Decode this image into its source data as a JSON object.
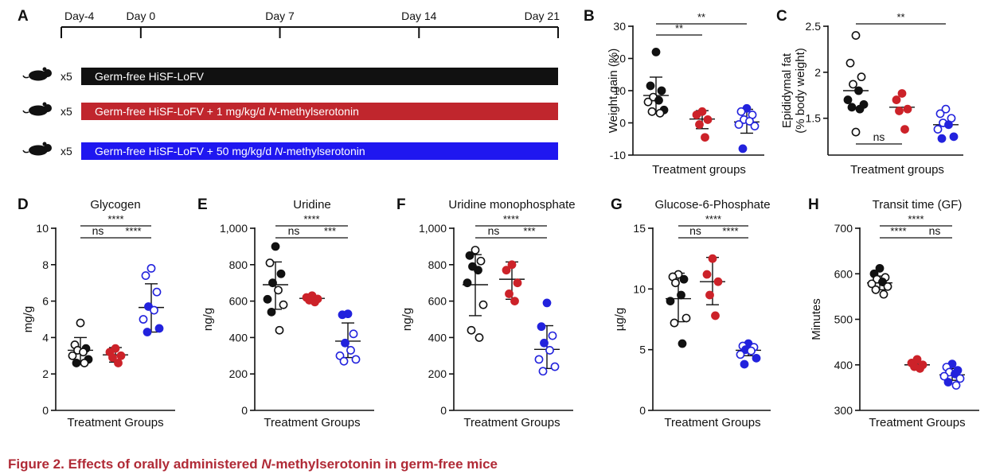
{
  "caption": {
    "prefix": "Figure 2.  Effects of orally administered ",
    "italic": "N",
    "suffix": "-methylserotonin in germ-free mice"
  },
  "colors": {
    "black": "#111111",
    "red": "#cc2229",
    "blue": "#2222dd"
  },
  "panel_a": {
    "letter": "A",
    "timeline": [
      "Day-4",
      "Day 0",
      "Day 7",
      "Day 14",
      "Day 21"
    ],
    "groups": [
      {
        "count": "x5",
        "label": "Germ-free   HiSF-LoFV",
        "italic": "",
        "after": "",
        "color": "#111111",
        "icon": "mouse-icon"
      },
      {
        "count": "x5",
        "label": "Germ-free   HiSF-LoFV + 1 mg/kg/d ",
        "italic": "N",
        "after": "-methylserotonin",
        "color": "#c0262d",
        "icon": "mouse-icon"
      },
      {
        "count": "x5",
        "label": "Germ-free   HiSF-LoFV + 50 mg/kg/d ",
        "italic": "N",
        "after": "-methylserotonin",
        "color": "#1f17f0",
        "icon": "mouse-icon"
      }
    ]
  },
  "chart_data": [
    {
      "panel": "B",
      "type": "scatter",
      "title": "",
      "xlabel": "Treatment groups",
      "ylabel": "Weight gain (%)",
      "ylim": [
        -10,
        30
      ],
      "yticks": [
        -10,
        0,
        10,
        20,
        30
      ],
      "ytick_labels": [
        "-10",
        "0",
        "10",
        "20",
        "30"
      ],
      "groups": [
        {
          "color": "black",
          "mean": 8.5,
          "sd_low": 3.5,
          "sd_high": 14.2,
          "points": [
            [
              22,
              "f"
            ],
            [
              11.5,
              "f"
            ],
            [
              10,
              "f"
            ],
            [
              8,
              "o"
            ],
            [
              7,
              "f"
            ],
            [
              6.5,
              "o"
            ],
            [
              4,
              "f"
            ],
            [
              3.5,
              "o"
            ],
            [
              3,
              "o"
            ]
          ]
        },
        {
          "color": "red",
          "mean": 1.2,
          "sd_low": -1.8,
          "sd_high": 3.8,
          "points": [
            [
              3.5,
              "f"
            ],
            [
              2.5,
              "f"
            ],
            [
              1,
              "f"
            ],
            [
              -0.5,
              "f"
            ],
            [
              -4.5,
              "f"
            ]
          ]
        },
        {
          "color": "blue",
          "mean": 0.3,
          "sd_low": -3.2,
          "sd_high": 4.2,
          "points": [
            [
              4.5,
              "f"
            ],
            [
              3.5,
              "o"
            ],
            [
              2.5,
              "o"
            ],
            [
              1,
              "o"
            ],
            [
              0.5,
              "o"
            ],
            [
              -0.5,
              "o"
            ],
            [
              -1,
              "o"
            ],
            [
              -8,
              "f"
            ]
          ]
        }
      ],
      "sig": [
        {
          "from": 0,
          "to": 1,
          "label": "**"
        },
        {
          "from": 0,
          "to": 2,
          "label": "**"
        }
      ]
    },
    {
      "panel": "C",
      "type": "scatter",
      "title": "",
      "xlabel": "Treatment groups",
      "ylabel": "Epididymal fat (% body weight)",
      "ylabel_lines": [
        "Epididymal fat",
        "(% body weight)"
      ],
      "ylim": [
        1.1,
        2.5
      ],
      "yticks": [
        1.5,
        2.0,
        2.5
      ],
      "ytick_labels": [
        "1.5",
        "2",
        "2.5"
      ],
      "groups": [
        {
          "color": "black",
          "mean": 1.8,
          "points": [
            [
              2.4,
              "o"
            ],
            [
              2.1,
              "o"
            ],
            [
              1.95,
              "o"
            ],
            [
              1.87,
              "o"
            ],
            [
              1.8,
              "f"
            ],
            [
              1.7,
              "f"
            ],
            [
              1.65,
              "f"
            ],
            [
              1.62,
              "f"
            ],
            [
              1.6,
              "f"
            ],
            [
              1.35,
              "o"
            ]
          ]
        },
        {
          "color": "red",
          "mean": 1.62,
          "points": [
            [
              1.77,
              "f"
            ],
            [
              1.7,
              "f"
            ],
            [
              1.6,
              "f"
            ],
            [
              1.58,
              "f"
            ],
            [
              1.38,
              "f"
            ]
          ]
        },
        {
          "color": "blue",
          "mean": 1.43,
          "points": [
            [
              1.6,
              "o"
            ],
            [
              1.55,
              "o"
            ],
            [
              1.5,
              "o"
            ],
            [
              1.45,
              "o"
            ],
            [
              1.43,
              "f"
            ],
            [
              1.38,
              "o"
            ],
            [
              1.3,
              "f"
            ],
            [
              1.28,
              "f"
            ]
          ]
        }
      ],
      "sig": [
        {
          "from": 0,
          "to": 2,
          "label": "**"
        },
        {
          "from": 0,
          "to": 1,
          "label": "ns",
          "below": true
        }
      ]
    },
    {
      "panel": "D",
      "type": "scatter",
      "title": "Glycogen",
      "xlabel": "Treatment Groups",
      "ylabel": "mg/g",
      "ylim": [
        0,
        10
      ],
      "yticks": [
        0,
        2,
        4,
        6,
        8,
        10
      ],
      "ytick_labels": [
        "0",
        "2",
        "4",
        "6",
        "8",
        "10"
      ],
      "groups": [
        {
          "color": "black",
          "mean": 3.3,
          "sd_low": 2.6,
          "sd_high": 4.0,
          "points": [
            [
              4.8,
              "o"
            ],
            [
              3.6,
              "o"
            ],
            [
              3.4,
              "f"
            ],
            [
              3.3,
              "o"
            ],
            [
              3.2,
              "o"
            ],
            [
              3.0,
              "o"
            ],
            [
              2.8,
              "f"
            ],
            [
              2.6,
              "f"
            ],
            [
              2.6,
              "o"
            ]
          ]
        },
        {
          "color": "red",
          "mean": 3.05,
          "sd_low": 2.65,
          "sd_high": 3.45,
          "points": [
            [
              3.4,
              "f"
            ],
            [
              3.2,
              "f"
            ],
            [
              3.0,
              "f"
            ],
            [
              2.9,
              "f"
            ],
            [
              2.6,
              "f"
            ]
          ]
        },
        {
          "color": "blue",
          "mean": 5.65,
          "sd_low": 4.3,
          "sd_high": 6.95,
          "points": [
            [
              7.8,
              "o"
            ],
            [
              7.4,
              "o"
            ],
            [
              6.5,
              "o"
            ],
            [
              5.7,
              "f"
            ],
            [
              5.5,
              "o"
            ],
            [
              5.0,
              "o"
            ],
            [
              4.5,
              "f"
            ],
            [
              4.3,
              "f"
            ]
          ]
        }
      ],
      "sig": [
        {
          "from": 0,
          "to": 2,
          "label": "****"
        },
        {
          "from": 0,
          "to": 1,
          "label": "ns"
        },
        {
          "from": 1,
          "to": 2,
          "label": "****"
        }
      ]
    },
    {
      "panel": "E",
      "type": "scatter",
      "title": "Uridine",
      "xlabel": "Treatment Groups",
      "ylabel": "ng/g",
      "ylim": [
        0,
        1000
      ],
      "yticks": [
        0,
        200,
        400,
        600,
        800,
        1000
      ],
      "ytick_labels": [
        "0",
        "200",
        "400",
        "600",
        "800",
        "1,000"
      ],
      "groups": [
        {
          "color": "black",
          "mean": 690,
          "sd_low": 555,
          "sd_high": 815,
          "points": [
            [
              900,
              "f"
            ],
            [
              810,
              "o"
            ],
            [
              750,
              "f"
            ],
            [
              700,
              "f"
            ],
            [
              660,
              "o"
            ],
            [
              610,
              "f"
            ],
            [
              580,
              "o"
            ],
            [
              540,
              "f"
            ],
            [
              440,
              "o"
            ]
          ]
        },
        {
          "color": "red",
          "mean": 615,
          "sd_low": 600,
          "sd_high": 630,
          "points": [
            [
              630,
              "f"
            ],
            [
              620,
              "f"
            ],
            [
              612,
              "f"
            ],
            [
              605,
              "f"
            ],
            [
              595,
              "f"
            ]
          ]
        },
        {
          "color": "blue",
          "mean": 380,
          "sd_low": 290,
          "sd_high": 480,
          "points": [
            [
              530,
              "f"
            ],
            [
              525,
              "f"
            ],
            [
              420,
              "o"
            ],
            [
              370,
              "f"
            ],
            [
              330,
              "o"
            ],
            [
              300,
              "o"
            ],
            [
              280,
              "o"
            ],
            [
              270,
              "o"
            ]
          ]
        }
      ],
      "sig": [
        {
          "from": 0,
          "to": 2,
          "label": "****"
        },
        {
          "from": 0,
          "to": 1,
          "label": "ns"
        },
        {
          "from": 1,
          "to": 2,
          "label": "***"
        }
      ]
    },
    {
      "panel": "F",
      "type": "scatter",
      "title": "Uridine monophosphate",
      "xlabel": "Treatment Groups",
      "ylabel": "ng/g",
      "ylim": [
        0,
        1000
      ],
      "yticks": [
        0,
        200,
        400,
        600,
        800,
        1000
      ],
      "ytick_labels": [
        "0",
        "200",
        "400",
        "600",
        "800",
        "1,000"
      ],
      "groups": [
        {
          "color": "black",
          "mean": 690,
          "sd_low": 520,
          "sd_high": 855,
          "points": [
            [
              880,
              "o"
            ],
            [
              850,
              "f"
            ],
            [
              820,
              "o"
            ],
            [
              790,
              "f"
            ],
            [
              770,
              "f"
            ],
            [
              700,
              "f"
            ],
            [
              580,
              "o"
            ],
            [
              440,
              "o"
            ],
            [
              400,
              "o"
            ]
          ]
        },
        {
          "color": "red",
          "mean": 720,
          "sd_low": 610,
          "sd_high": 815,
          "points": [
            [
              800,
              "f"
            ],
            [
              770,
              "f"
            ],
            [
              700,
              "f"
            ],
            [
              640,
              "f"
            ],
            [
              600,
              "f"
            ]
          ]
        },
        {
          "color": "blue",
          "mean": 335,
          "sd_low": 230,
          "sd_high": 465,
          "points": [
            [
              590,
              "f"
            ],
            [
              460,
              "f"
            ],
            [
              410,
              "o"
            ],
            [
              370,
              "f"
            ],
            [
              330,
              "o"
            ],
            [
              280,
              "o"
            ],
            [
              240,
              "o"
            ],
            [
              215,
              "o"
            ]
          ]
        }
      ],
      "sig": [
        {
          "from": 0,
          "to": 2,
          "label": "****"
        },
        {
          "from": 0,
          "to": 1,
          "label": "ns"
        },
        {
          "from": 1,
          "to": 2,
          "label": "***"
        }
      ]
    },
    {
      "panel": "G",
      "type": "scatter",
      "title": "Glucose-6-Phosphate",
      "xlabel": "Treatment Groups",
      "ylabel": "µg/g",
      "ylim": [
        0,
        15
      ],
      "yticks": [
        0,
        5,
        10,
        15
      ],
      "ytick_labels": [
        "0",
        "5",
        "10",
        "15"
      ],
      "groups": [
        {
          "color": "black",
          "mean": 9.2,
          "sd_low": 7.3,
          "sd_high": 11.3,
          "points": [
            [
              11.2,
              "o"
            ],
            [
              11.0,
              "o"
            ],
            [
              10.8,
              "f"
            ],
            [
              10.5,
              "o"
            ],
            [
              9.5,
              "f"
            ],
            [
              9.0,
              "f"
            ],
            [
              7.6,
              "o"
            ],
            [
              7.2,
              "o"
            ],
            [
              5.5,
              "f"
            ]
          ]
        },
        {
          "color": "red",
          "mean": 10.6,
          "sd_low": 8.7,
          "sd_high": 12.6,
          "points": [
            [
              12.5,
              "f"
            ],
            [
              11.2,
              "f"
            ],
            [
              10.6,
              "f"
            ],
            [
              9.5,
              "f"
            ],
            [
              7.8,
              "f"
            ]
          ]
        },
        {
          "color": "blue",
          "mean": 4.95,
          "sd_low": 4.5,
          "sd_high": 5.4,
          "points": [
            [
              5.5,
              "f"
            ],
            [
              5.3,
              "o"
            ],
            [
              5.2,
              "o"
            ],
            [
              5.0,
              "f"
            ],
            [
              4.9,
              "o"
            ],
            [
              4.6,
              "o"
            ],
            [
              4.3,
              "f"
            ],
            [
              3.8,
              "f"
            ]
          ]
        }
      ],
      "sig": [
        {
          "from": 0,
          "to": 2,
          "label": "****"
        },
        {
          "from": 0,
          "to": 1,
          "label": "ns"
        },
        {
          "from": 1,
          "to": 2,
          "label": "****"
        }
      ]
    },
    {
      "panel": "H",
      "type": "scatter",
      "title": "Transit time (GF)",
      "xlabel": "Treatment Groups",
      "ylabel": "Minutes",
      "ylim": [
        300,
        700
      ],
      "yticks": [
        300,
        400,
        500,
        600,
        700
      ],
      "ytick_labels": [
        "300",
        "400",
        "500",
        "600",
        "700"
      ],
      "groups": [
        {
          "color": "black",
          "mean": 580,
          "sd_low": 565,
          "sd_high": 595,
          "points": [
            [
              612,
              "f"
            ],
            [
              600,
              "f"
            ],
            [
              592,
              "o"
            ],
            [
              588,
              "o"
            ],
            [
              582,
              "f"
            ],
            [
              578,
              "o"
            ],
            [
              572,
              "o"
            ],
            [
              565,
              "o"
            ],
            [
              555,
              "o"
            ]
          ]
        },
        {
          "color": "red",
          "mean": 400,
          "sd_low": 398,
          "sd_high": 403,
          "points": [
            [
              412,
              "f"
            ],
            [
              404,
              "f"
            ],
            [
              400,
              "f"
            ],
            [
              396,
              "f"
            ],
            [
              392,
              "f"
            ]
          ]
        },
        {
          "color": "blue",
          "mean": 378,
          "sd_low": 366,
          "sd_high": 392,
          "points": [
            [
              402,
              "f"
            ],
            [
              395,
              "o"
            ],
            [
              388,
              "f"
            ],
            [
              384,
              "o"
            ],
            [
              380,
              "f"
            ],
            [
              375,
              "o"
            ],
            [
              370,
              "o"
            ],
            [
              362,
              "f"
            ],
            [
              355,
              "o"
            ]
          ]
        }
      ],
      "sig": [
        {
          "from": 0,
          "to": 2,
          "label": "****"
        },
        {
          "from": 0,
          "to": 1,
          "label": "****"
        },
        {
          "from": 1,
          "to": 2,
          "label": "ns"
        }
      ]
    }
  ]
}
